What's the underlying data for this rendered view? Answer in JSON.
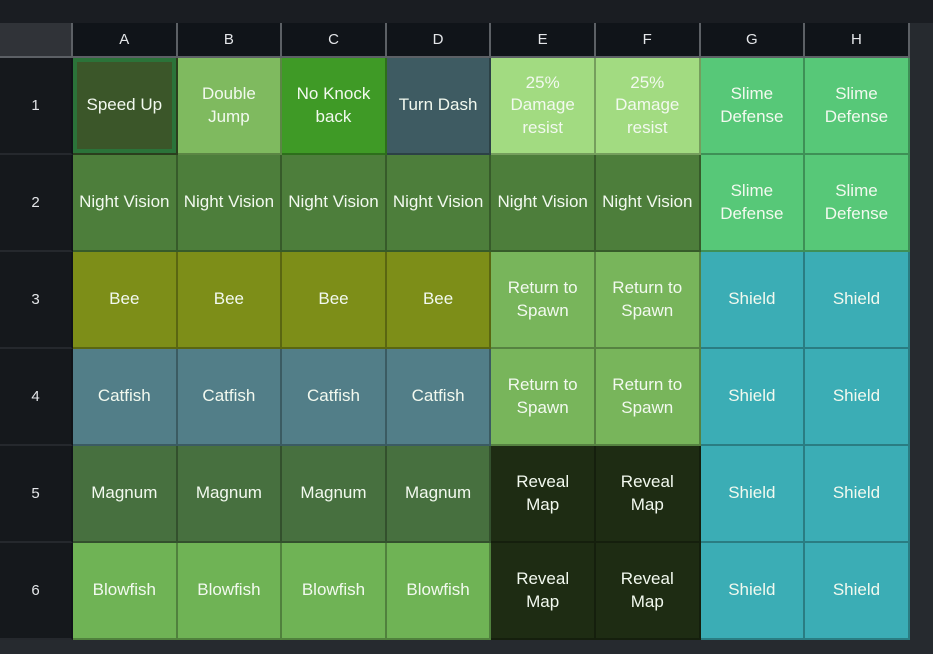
{
  "grid": {
    "columns": [
      "A",
      "B",
      "C",
      "D",
      "E",
      "F",
      "G",
      "H"
    ],
    "row_labels": [
      "1",
      "2",
      "3",
      "4",
      "5",
      "6"
    ],
    "selected_cell": "A1",
    "rows": [
      {
        "cells": [
          {
            "label": "Speed Up",
            "color_key": "speed_up"
          },
          {
            "label": "Double Jump",
            "color_key": "double_jump"
          },
          {
            "label": "No Knock back",
            "color_key": "no_knockback"
          },
          {
            "label": "Turn Dash",
            "color_key": "turn_dash"
          },
          {
            "label": "25% Damage resist",
            "color_key": "damage_resist"
          },
          {
            "label": "25% Damage resist",
            "color_key": "damage_resist"
          },
          {
            "label": "Slime Defense",
            "color_key": "slime_defense"
          },
          {
            "label": "Slime Defense",
            "color_key": "slime_defense"
          }
        ]
      },
      {
        "cells": [
          {
            "label": "Night Vision",
            "color_key": "night_vision"
          },
          {
            "label": "Night Vision",
            "color_key": "night_vision"
          },
          {
            "label": "Night Vision",
            "color_key": "night_vision"
          },
          {
            "label": "Night Vision",
            "color_key": "night_vision"
          },
          {
            "label": "Night Vision",
            "color_key": "night_vision"
          },
          {
            "label": "Night Vision",
            "color_key": "night_vision"
          },
          {
            "label": "Slime Defense",
            "color_key": "slime_defense"
          },
          {
            "label": "Slime Defense",
            "color_key": "slime_defense"
          }
        ]
      },
      {
        "cells": [
          {
            "label": "Bee",
            "color_key": "bee"
          },
          {
            "label": "Bee",
            "color_key": "bee"
          },
          {
            "label": "Bee",
            "color_key": "bee"
          },
          {
            "label": "Bee",
            "color_key": "bee"
          },
          {
            "label": "Return to Spawn",
            "color_key": "return_spawn"
          },
          {
            "label": "Return to Spawn",
            "color_key": "return_spawn"
          },
          {
            "label": "Shield",
            "color_key": "shield"
          },
          {
            "label": "Shield",
            "color_key": "shield"
          }
        ]
      },
      {
        "cells": [
          {
            "label": "Catfish",
            "color_key": "catfish"
          },
          {
            "label": "Catfish",
            "color_key": "catfish"
          },
          {
            "label": "Catfish",
            "color_key": "catfish"
          },
          {
            "label": "Catfish",
            "color_key": "catfish"
          },
          {
            "label": "Return to Spawn",
            "color_key": "return_spawn"
          },
          {
            "label": "Return to Spawn",
            "color_key": "return_spawn"
          },
          {
            "label": "Shield",
            "color_key": "shield"
          },
          {
            "label": "Shield",
            "color_key": "shield"
          }
        ]
      },
      {
        "cells": [
          {
            "label": "Magnum",
            "color_key": "magnum"
          },
          {
            "label": "Magnum",
            "color_key": "magnum"
          },
          {
            "label": "Magnum",
            "color_key": "magnum"
          },
          {
            "label": "Magnum",
            "color_key": "magnum"
          },
          {
            "label": "Reveal Map",
            "color_key": "reveal_map"
          },
          {
            "label": "Reveal Map",
            "color_key": "reveal_map"
          },
          {
            "label": "Shield",
            "color_key": "shield"
          },
          {
            "label": "Shield",
            "color_key": "shield"
          }
        ]
      },
      {
        "cells": [
          {
            "label": "Blowfish",
            "color_key": "blowfish"
          },
          {
            "label": "Blowfish",
            "color_key": "blowfish"
          },
          {
            "label": "Blowfish",
            "color_key": "blowfish"
          },
          {
            "label": "Blowfish",
            "color_key": "blowfish"
          },
          {
            "label": "Reveal Map",
            "color_key": "reveal_map"
          },
          {
            "label": "Reveal Map",
            "color_key": "reveal_map"
          },
          {
            "label": "Shield",
            "color_key": "shield"
          },
          {
            "label": "Shield",
            "color_key": "shield"
          }
        ]
      }
    ],
    "palette": {
      "speed_up": "#3b5629",
      "double_jump": "#7fba5f",
      "no_knockback": "#3f9a26",
      "turn_dash": "#3e5b62",
      "damage_resist": "#a2db81",
      "slime_defense": "#57c878",
      "night_vision": "#4d7e3b",
      "bee": "#7d8e18",
      "return_spawn": "#78b55b",
      "shield": "#3badb5",
      "catfish": "#527e88",
      "magnum": "#47703f",
      "reveal_map": "#1e2c13",
      "blowfish": "#6fb355"
    },
    "ui_colors": {
      "page_background": "#262a2f",
      "top_bar": "#1a1d22",
      "header_background": "#101419",
      "row_header_background": "#15181c",
      "corner_background": "#303338",
      "header_gridline": "#5c6065",
      "header_text": "#e4e6e9",
      "cell_text": "#f2f9ef",
      "selection_border": "#2b7339"
    }
  }
}
